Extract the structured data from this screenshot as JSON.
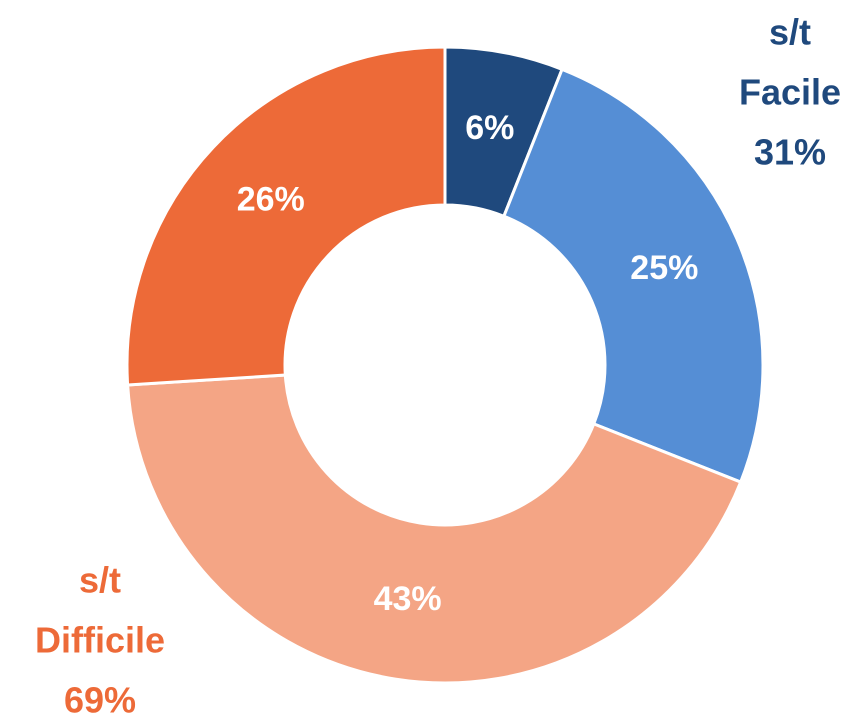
{
  "chart_data": {
    "type": "donut",
    "categories": [
      null,
      null,
      null,
      null
    ],
    "values": [
      6,
      25,
      43,
      26
    ],
    "value_labels": [
      "6%",
      "25%",
      "43%",
      "26%"
    ],
    "colors": [
      "#1f497d",
      "#558ed5",
      "#f4a585",
      "#ed6a38"
    ],
    "groups": [
      {
        "name": [
          "s/t",
          "Facile"
        ],
        "value": 31,
        "value_label": "31%",
        "color": "#1f497d"
      },
      {
        "name": [
          "s/t",
          "Difficile"
        ],
        "value": 69,
        "value_label": "69%",
        "color": "#ed6a38"
      }
    ]
  }
}
